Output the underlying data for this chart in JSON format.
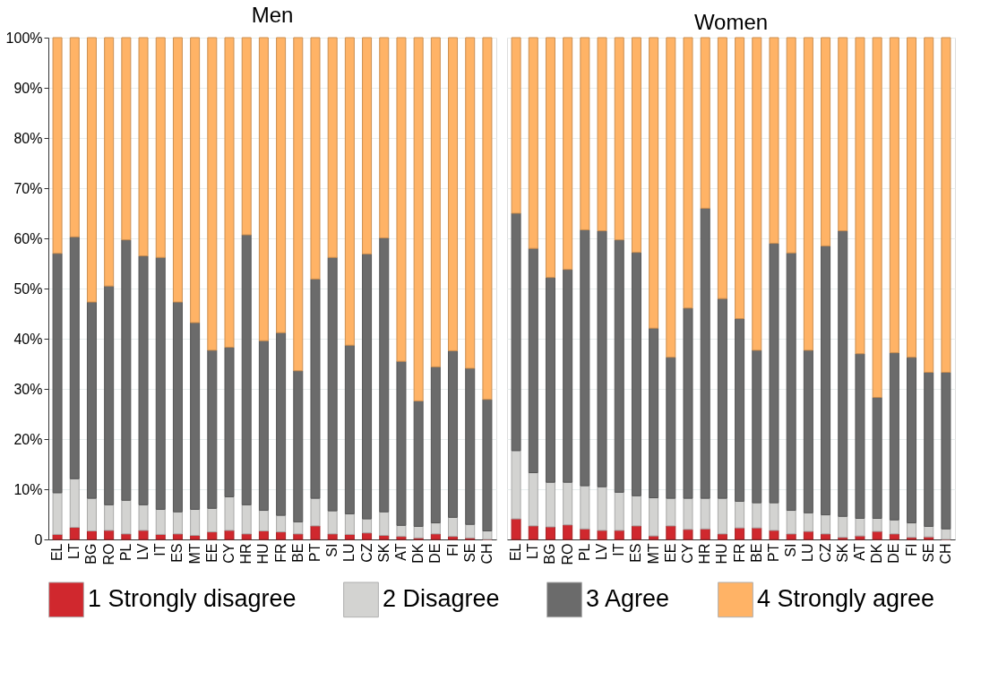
{
  "chart_data": [
    {
      "type": "bar",
      "title": "Men",
      "stacked": true,
      "grid": "y",
      "legend": "bottom",
      "categories": [
        "EL",
        "LT",
        "BG",
        "RO",
        "PL",
        "LV",
        "IT",
        "ES",
        "MT",
        "EE",
        "CY",
        "HR",
        "HU",
        "FR",
        "BE",
        "PT",
        "SI",
        "LU",
        "CZ",
        "SK",
        "AT",
        "DK",
        "DE",
        "FI",
        "SE",
        "CH"
      ],
      "ylim": [
        0,
        100
      ],
      "yticks": [
        {
          "value": 0,
          "label": "0"
        },
        {
          "value": 10,
          "label": "10%"
        },
        {
          "value": 20,
          "label": "20%"
        },
        {
          "value": 30,
          "label": "30%"
        },
        {
          "value": 40,
          "label": "40%"
        },
        {
          "value": 50,
          "label": "50%"
        },
        {
          "value": 60,
          "label": "60%"
        },
        {
          "value": 70,
          "label": "70%"
        },
        {
          "value": 80,
          "label": "80%"
        },
        {
          "value": 90,
          "label": "90%"
        },
        {
          "value": 100,
          "label": "100%"
        }
      ],
      "series": [
        {
          "name": "1 Strongly disagree",
          "color": "#d0282e",
          "values": [
            1.0,
            2.4,
            1.7,
            1.8,
            1.1,
            1.8,
            1.0,
            1.1,
            0.8,
            1.5,
            1.8,
            1.1,
            1.7,
            1.5,
            1.1,
            2.7,
            1.1,
            1.0,
            1.3,
            0.8,
            0.6,
            0.3,
            1.1,
            0.6,
            0.3,
            0
          ]
        },
        {
          "name": "2 Disagree",
          "color": "#d3d3d1",
          "values": [
            8.3,
            9.7,
            6.5,
            5.1,
            6.7,
            5.1,
            5.0,
            4.4,
            5.2,
            4.7,
            6.7,
            5.8,
            4.1,
            3.3,
            2.4,
            5.5,
            4.6,
            4.1,
            2.8,
            4.7,
            2.2,
            2.3,
            2.2,
            3.8,
            2.7,
            1.7
          ]
        },
        {
          "name": "3 Agree",
          "color": "#6b6b6b",
          "values": [
            47.7,
            48.2,
            39.1,
            43.6,
            51.9,
            49.6,
            50.2,
            41.8,
            37.2,
            31.5,
            29.8,
            53.8,
            33.8,
            36.4,
            30.1,
            43.7,
            50.5,
            33.6,
            52.8,
            54.6,
            32.7,
            25.0,
            31.1,
            33.2,
            31.1,
            26.2
          ]
        },
        {
          "name": "4 Strongly agree",
          "color": "#ffb366",
          "values": [
            43.0,
            39.7,
            52.7,
            49.5,
            40.3,
            43.5,
            43.8,
            52.7,
            56.8,
            62.3,
            61.7,
            39.3,
            60.4,
            58.8,
            66.4,
            48.1,
            43.8,
            61.3,
            43.1,
            39.9,
            64.5,
            72.4,
            65.6,
            62.4,
            65.9,
            72.1
          ]
        }
      ]
    },
    {
      "type": "bar",
      "title": "Women",
      "stacked": true,
      "grid": "y",
      "legend": "bottom",
      "tick_labels": "x",
      "categories": [
        "EL",
        "LT",
        "BG",
        "RO",
        "PL",
        "LV",
        "IT",
        "ES",
        "MT",
        "EE",
        "CY",
        "HR",
        "HU",
        "FR",
        "BE",
        "PT",
        "SI",
        "LU",
        "CZ",
        "SK",
        "AT",
        "DK",
        "DE",
        "FI",
        "SE",
        "CH"
      ],
      "ylim": [
        0,
        100
      ],
      "series": [
        {
          "name": "1 Strongly disagree",
          "color": "#d0282e",
          "values": [
            4.1,
            2.7,
            2.5,
            2.9,
            2.1,
            1.8,
            1.8,
            2.7,
            0.7,
            2.7,
            2.0,
            2.1,
            1.1,
            2.3,
            2.3,
            1.8,
            1.1,
            1.6,
            1.1,
            0.4,
            0.7,
            1.6,
            1.1,
            0.4,
            0.5,
            0
          ]
        },
        {
          "name": "2 Disagree",
          "color": "#d3d3d1",
          "values": [
            13.6,
            10.6,
            8.9,
            8.5,
            8.6,
            8.7,
            7.6,
            6.0,
            7.6,
            5.5,
            6.2,
            6.1,
            7.1,
            5.3,
            5.0,
            5.5,
            4.7,
            3.7,
            3.8,
            4.2,
            3.5,
            2.6,
            2.8,
            2.9,
            2.1,
            2.1
          ]
        },
        {
          "name": "3 Agree",
          "color": "#6b6b6b",
          "values": [
            47.3,
            44.7,
            40.8,
            42.4,
            51.0,
            51.0,
            50.3,
            48.5,
            33.8,
            28.1,
            37.9,
            57.8,
            39.8,
            36.4,
            30.4,
            51.7,
            51.3,
            32.4,
            53.6,
            56.9,
            32.8,
            24.1,
            33.3,
            33.0,
            30.7,
            31.2
          ]
        },
        {
          "name": "4 Strongly agree",
          "color": "#ffb366",
          "values": [
            35.0,
            42.0,
            47.8,
            46.2,
            38.3,
            38.5,
            40.3,
            42.8,
            57.9,
            63.7,
            53.9,
            34.0,
            52.0,
            56.0,
            62.3,
            41.0,
            42.9,
            62.3,
            41.5,
            38.5,
            63.0,
            71.7,
            62.8,
            63.7,
            66.7,
            66.7
          ]
        }
      ]
    }
  ]
}
